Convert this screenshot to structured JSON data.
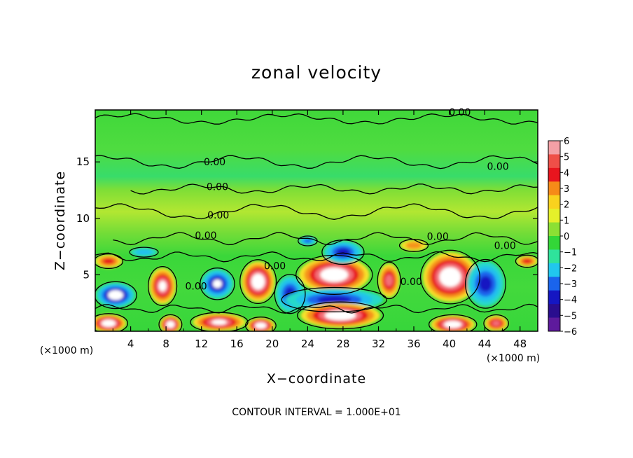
{
  "chart_data": {
    "type": "heatmap",
    "title": "zonal velocity",
    "xlabel": "X−coordinate",
    "ylabel": "Z−coordinate",
    "x_unit": "(×1000 m)",
    "y_unit": "(×1000 m)",
    "xlim": [
      0,
      50
    ],
    "ylim": [
      0,
      19.6
    ],
    "x_ticks": [
      4,
      8,
      12,
      16,
      20,
      24,
      28,
      32,
      36,
      40,
      44,
      48
    ],
    "y_ticks": [
      5,
      10,
      15
    ],
    "colorbar": {
      "ticks": [
        "6",
        "5",
        "4",
        "3",
        "2",
        "1",
        "0",
        "−1",
        "−2",
        "−3",
        "−4",
        "−5",
        "−6"
      ],
      "colors": [
        "#f4a0a6",
        "#ef4f48",
        "#e8151e",
        "#f68a18",
        "#f9d21e",
        "#e5f02a",
        "#8ce034",
        "#33d638",
        "#2fe39b",
        "#21c7ee",
        "#1a64ec",
        "#1516c2",
        "#2a0d8e",
        "#5e1a9c"
      ]
    },
    "contour_labels": [
      {
        "text": "0.00",
        "x": 41.2,
        "z": 19.4
      },
      {
        "text": "0.00",
        "x": 13.5,
        "z": 15.0
      },
      {
        "text": "0.00",
        "x": 45.5,
        "z": 14.6
      },
      {
        "text": "0.00",
        "x": 13.8,
        "z": 12.8
      },
      {
        "text": "0.00",
        "x": 13.9,
        "z": 10.3
      },
      {
        "text": "0.00",
        "x": 12.5,
        "z": 8.5
      },
      {
        "text": "0.00",
        "x": 38.7,
        "z": 8.4
      },
      {
        "text": "0.00",
        "x": 46.3,
        "z": 7.6
      },
      {
        "text": "0.00",
        "x": 20.3,
        "z": 5.8
      },
      {
        "text": "0.00",
        "x": 11.4,
        "z": 4.0
      },
      {
        "text": "0.00",
        "x": 35.7,
        "z": 4.4
      }
    ],
    "features": [
      {
        "sign": "negative",
        "x": 2.3,
        "z": 3.2,
        "rx": 2.2,
        "rz": 1.1,
        "peak": -6
      },
      {
        "sign": "positive",
        "x": 7.6,
        "z": 4.0,
        "rx": 1.5,
        "rz": 1.6,
        "peak": 5
      },
      {
        "sign": "negative",
        "x": 13.8,
        "z": 4.2,
        "rx": 1.8,
        "rz": 1.3,
        "peak": -5
      },
      {
        "sign": "positive",
        "x": 18.4,
        "z": 4.4,
        "rx": 1.9,
        "rz": 1.8,
        "peak": 6
      },
      {
        "sign": "negative",
        "x": 22.0,
        "z": 3.3,
        "rx": 1.6,
        "rz": 1.6,
        "peak": -4
      },
      {
        "sign": "positive",
        "x": 27.0,
        "z": 5.0,
        "rx": 4.0,
        "rz": 1.6,
        "peak": 6
      },
      {
        "sign": "negative",
        "x": 27.0,
        "z": 2.8,
        "rx": 5.5,
        "rz": 1.0,
        "peak": -4
      },
      {
        "sign": "negative",
        "x": 28.0,
        "z": 7.0,
        "rx": 2.2,
        "rz": 1.0,
        "peak": -4
      },
      {
        "sign": "positive",
        "x": 33.2,
        "z": 4.5,
        "rx": 1.2,
        "rz": 1.5,
        "peak": 4
      },
      {
        "sign": "positive",
        "x": 40.1,
        "z": 4.8,
        "rx": 3.1,
        "rz": 2.2,
        "peak": 6
      },
      {
        "sign": "negative",
        "x": 44.1,
        "z": 4.2,
        "rx": 2.1,
        "rz": 2.0,
        "peak": -4
      },
      {
        "sign": "positive",
        "x": 1.5,
        "z": 6.2,
        "rx": 1.5,
        "rz": 0.6,
        "peak": 3
      },
      {
        "sign": "positive",
        "x": 1.5,
        "z": 0.7,
        "rx": 2.0,
        "rz": 0.8,
        "peak": 6
      },
      {
        "sign": "positive",
        "x": 8.5,
        "z": 0.6,
        "rx": 1.2,
        "rz": 0.8,
        "peak": 6
      },
      {
        "sign": "positive",
        "x": 14.0,
        "z": 0.8,
        "rx": 3.0,
        "rz": 0.8,
        "peak": 5
      },
      {
        "sign": "positive",
        "x": 18.7,
        "z": 0.5,
        "rx": 1.6,
        "rz": 0.7,
        "peak": 6
      },
      {
        "sign": "positive",
        "x": 27.7,
        "z": 1.4,
        "rx": 4.5,
        "rz": 1.1,
        "peak": 6
      },
      {
        "sign": "positive",
        "x": 40.4,
        "z": 0.6,
        "rx": 2.5,
        "rz": 0.8,
        "peak": 6
      },
      {
        "sign": "positive",
        "x": 45.3,
        "z": 0.7,
        "rx": 1.3,
        "rz": 0.7,
        "peak": 4
      },
      {
        "sign": "negative",
        "x": 24.0,
        "z": 8.0,
        "rx": 1.0,
        "rz": 0.4,
        "peak": -3
      },
      {
        "sign": "negative",
        "x": 5.5,
        "z": 7.0,
        "rx": 1.5,
        "rz": 0.4,
        "peak": -2
      },
      {
        "sign": "positive",
        "x": 36.0,
        "z": 7.6,
        "rx": 1.5,
        "rz": 0.5,
        "peak": 2
      },
      {
        "sign": "positive",
        "x": 48.8,
        "z": 6.2,
        "rx": 1.2,
        "rz": 0.5,
        "peak": 3
      }
    ],
    "footer": "CONTOUR INTERVAL = 1.000E+01"
  }
}
